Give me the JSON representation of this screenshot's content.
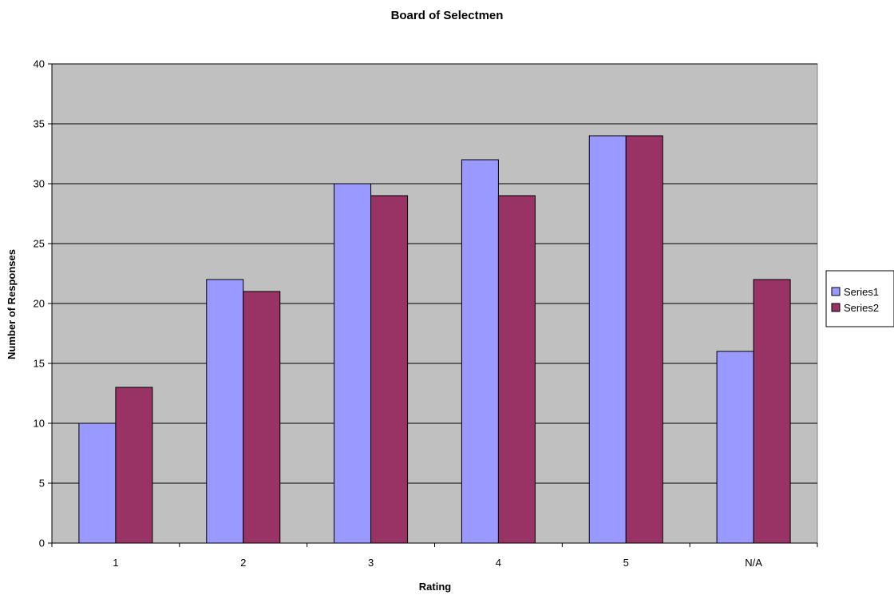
{
  "chart_data": {
    "type": "bar",
    "title": "Board of Selectmen",
    "xlabel": "Rating",
    "ylabel": "Number of Responses",
    "categories": [
      "1",
      "2",
      "3",
      "4",
      "5",
      "N/A"
    ],
    "series": [
      {
        "name": "Series1",
        "values": [
          10,
          22,
          30,
          32,
          34,
          16
        ],
        "color": "#9999FF"
      },
      {
        "name": "Series2",
        "values": [
          13,
          21,
          29,
          29,
          34,
          22
        ],
        "color": "#993366"
      }
    ],
    "ylim": [
      0,
      40
    ],
    "yticks": [
      0,
      5,
      10,
      15,
      20,
      25,
      30,
      35,
      40
    ],
    "grid": true,
    "legend_position": "right",
    "plot_background": "#C0C0C0"
  }
}
